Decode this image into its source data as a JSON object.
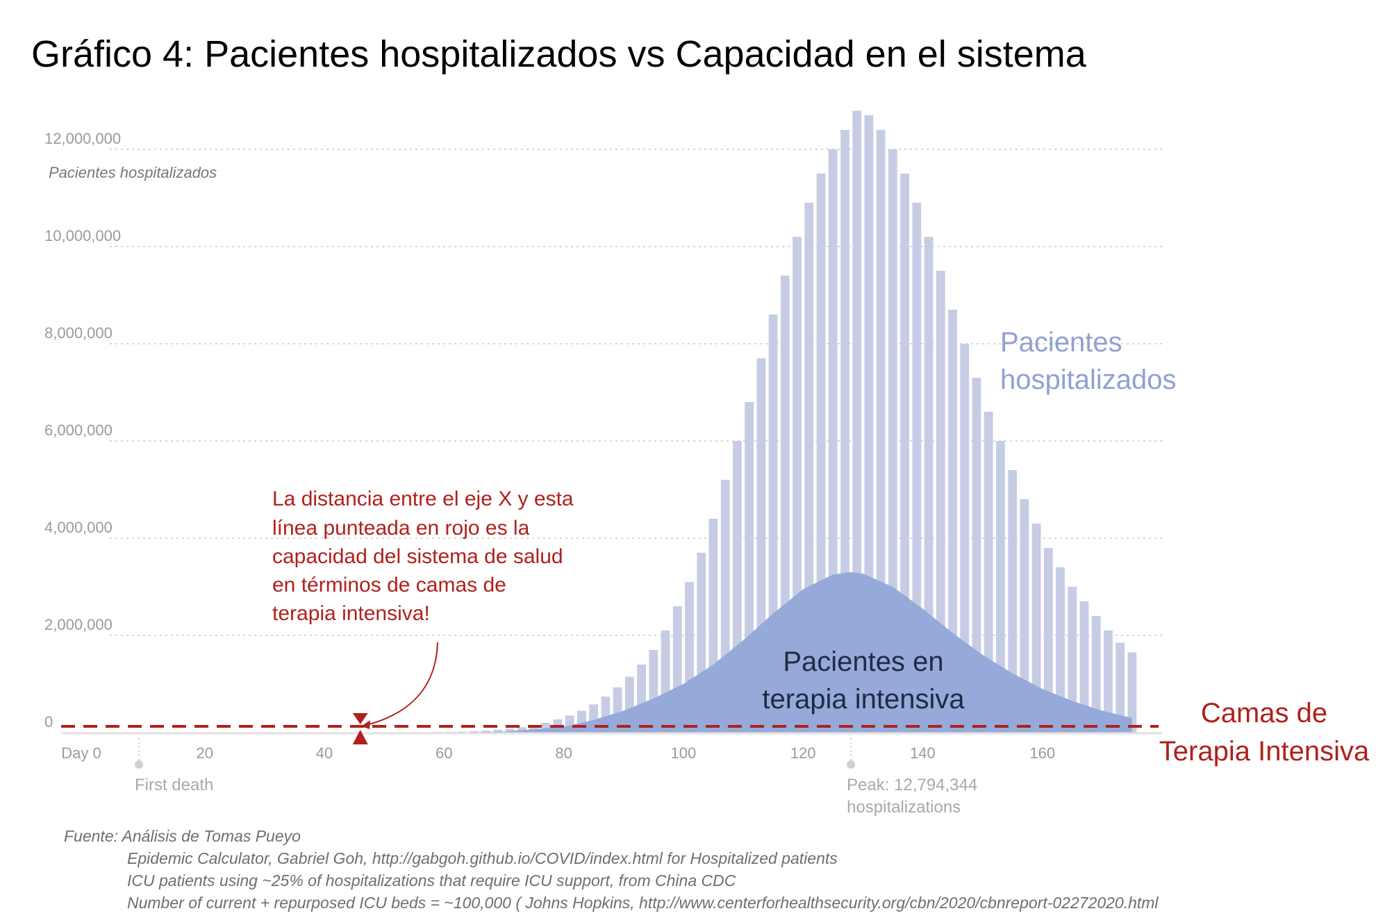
{
  "title": "Gráfico 4: Pacientes hospitalizados vs Capacidad en el sistema",
  "chart_data": {
    "type": "bar",
    "ylabel": "Pacientes hospitalizados",
    "xlabel": "",
    "ylim": [
      0,
      12500000
    ],
    "xlim": [
      -4,
      180
    ],
    "yticks": [
      {
        "value": 0,
        "label": "0"
      },
      {
        "value": 2000000,
        "label": "2,000,000"
      },
      {
        "value": 4000000,
        "label": "4,000,000"
      },
      {
        "value": 6000000,
        "label": "6,000,000"
      },
      {
        "value": 8000000,
        "label": "8,000,000"
      },
      {
        "value": 10000000,
        "label": "10,000,000"
      },
      {
        "value": 12000000,
        "label": "12,000,000"
      }
    ],
    "xticks": [
      {
        "value": 0,
        "label": "Day 0"
      },
      {
        "value": 20,
        "label": "20"
      },
      {
        "value": 40,
        "label": "40"
      },
      {
        "value": 60,
        "label": "60"
      },
      {
        "value": 80,
        "label": "80"
      },
      {
        "value": 100,
        "label": "100"
      },
      {
        "value": 120,
        "label": "120"
      },
      {
        "value": 140,
        "label": "140"
      },
      {
        "value": 160,
        "label": "160"
      }
    ],
    "grid": true,
    "colors": {
      "hospitalized": "#c5cce4",
      "icu": "#95aad9",
      "capacity": "#b0201c",
      "grid": "#d6d6d6",
      "axis": "#e3e3e3",
      "marker": "#d0d0d0"
    },
    "series": [
      {
        "name": "Pacientes hospitalizados",
        "x": [
          59,
          61,
          63,
          65,
          67,
          69,
          71,
          73,
          75,
          77,
          79,
          81,
          83,
          85,
          87,
          89,
          91,
          93,
          95,
          97,
          99,
          101,
          103,
          105,
          107,
          109,
          111,
          113,
          115,
          117,
          119,
          121,
          123,
          125,
          127,
          129,
          131,
          133,
          135,
          137,
          139,
          141,
          143,
          145,
          147,
          149,
          151,
          153,
          155,
          157,
          159,
          161,
          163,
          165,
          167,
          169,
          171,
          173,
          175
        ],
        "values": [
          10000,
          15000,
          20000,
          30000,
          40000,
          60000,
          80000,
          110000,
          150000,
          200000,
          270000,
          350000,
          450000,
          580000,
          740000,
          930000,
          1150000,
          1400000,
          1700000,
          2100000,
          2600000,
          3100000,
          3700000,
          4400000,
          5200000,
          6000000,
          6800000,
          7700000,
          8600000,
          9400000,
          10200000,
          10900000,
          11500000,
          12000000,
          12400000,
          12794344,
          12700000,
          12400000,
          12000000,
          11500000,
          10900000,
          10200000,
          9500000,
          8700000,
          8000000,
          7300000,
          6600000,
          6000000,
          5400000,
          4800000,
          4300000,
          3800000,
          3400000,
          3000000,
          2700000,
          2400000,
          2100000,
          1850000,
          1650000
        ]
      },
      {
        "name": "Pacientes en terapia intensiva",
        "type": "area",
        "x": [
          60,
          70,
          80,
          85,
          90,
          95,
          100,
          105,
          110,
          115,
          120,
          125,
          128,
          130,
          135,
          140,
          145,
          150,
          155,
          160,
          165,
          170,
          175
        ],
        "values": [
          0,
          20000,
          120000,
          260000,
          450000,
          700000,
          1000000,
          1400000,
          1900000,
          2450000,
          2950000,
          3250000,
          3300000,
          3270000,
          3000000,
          2550000,
          2050000,
          1600000,
          1220000,
          900000,
          650000,
          450000,
          300000
        ]
      }
    ],
    "capacity": {
      "name": "Camas de Terapia Intensiva",
      "value": 100000,
      "annotation_x": 46
    },
    "markers": [
      {
        "x": 9,
        "label": "First death"
      },
      {
        "x": 128,
        "label": "Peak: 12,794,344",
        "label2": "hospitalizations"
      }
    ],
    "series_label_1": "Pacientes",
    "series_label_2": "hospitalizados",
    "icu_label_1": "Pacientes en",
    "icu_label_2": "terapia intensiva",
    "capacity_label_1": "Camas de",
    "capacity_label_2": "Terapia Intensiva",
    "note_lines": [
      "La distancia entre el eje X y esta",
      "línea punteada en rojo es la",
      "capacidad del sistema de salud",
      "en términos de camas de",
      "terapia intensiva!"
    ]
  },
  "source_lines": [
    "Fuente: Análisis de Tomas Pueyo",
    "Epidemic Calculator, Gabriel Goh, http://gabgoh.github.io/COVID/index.html for Hospitalized patients",
    "ICU patients using ~25% of hospitalizations that require ICU support, from China CDC",
    "Number of current + repurposed ICU beds = ~100,000 ( Johns Hopkins, http://www.centerforhealthsecurity.org/cbn/2020/cbnreport-02272020.html"
  ]
}
